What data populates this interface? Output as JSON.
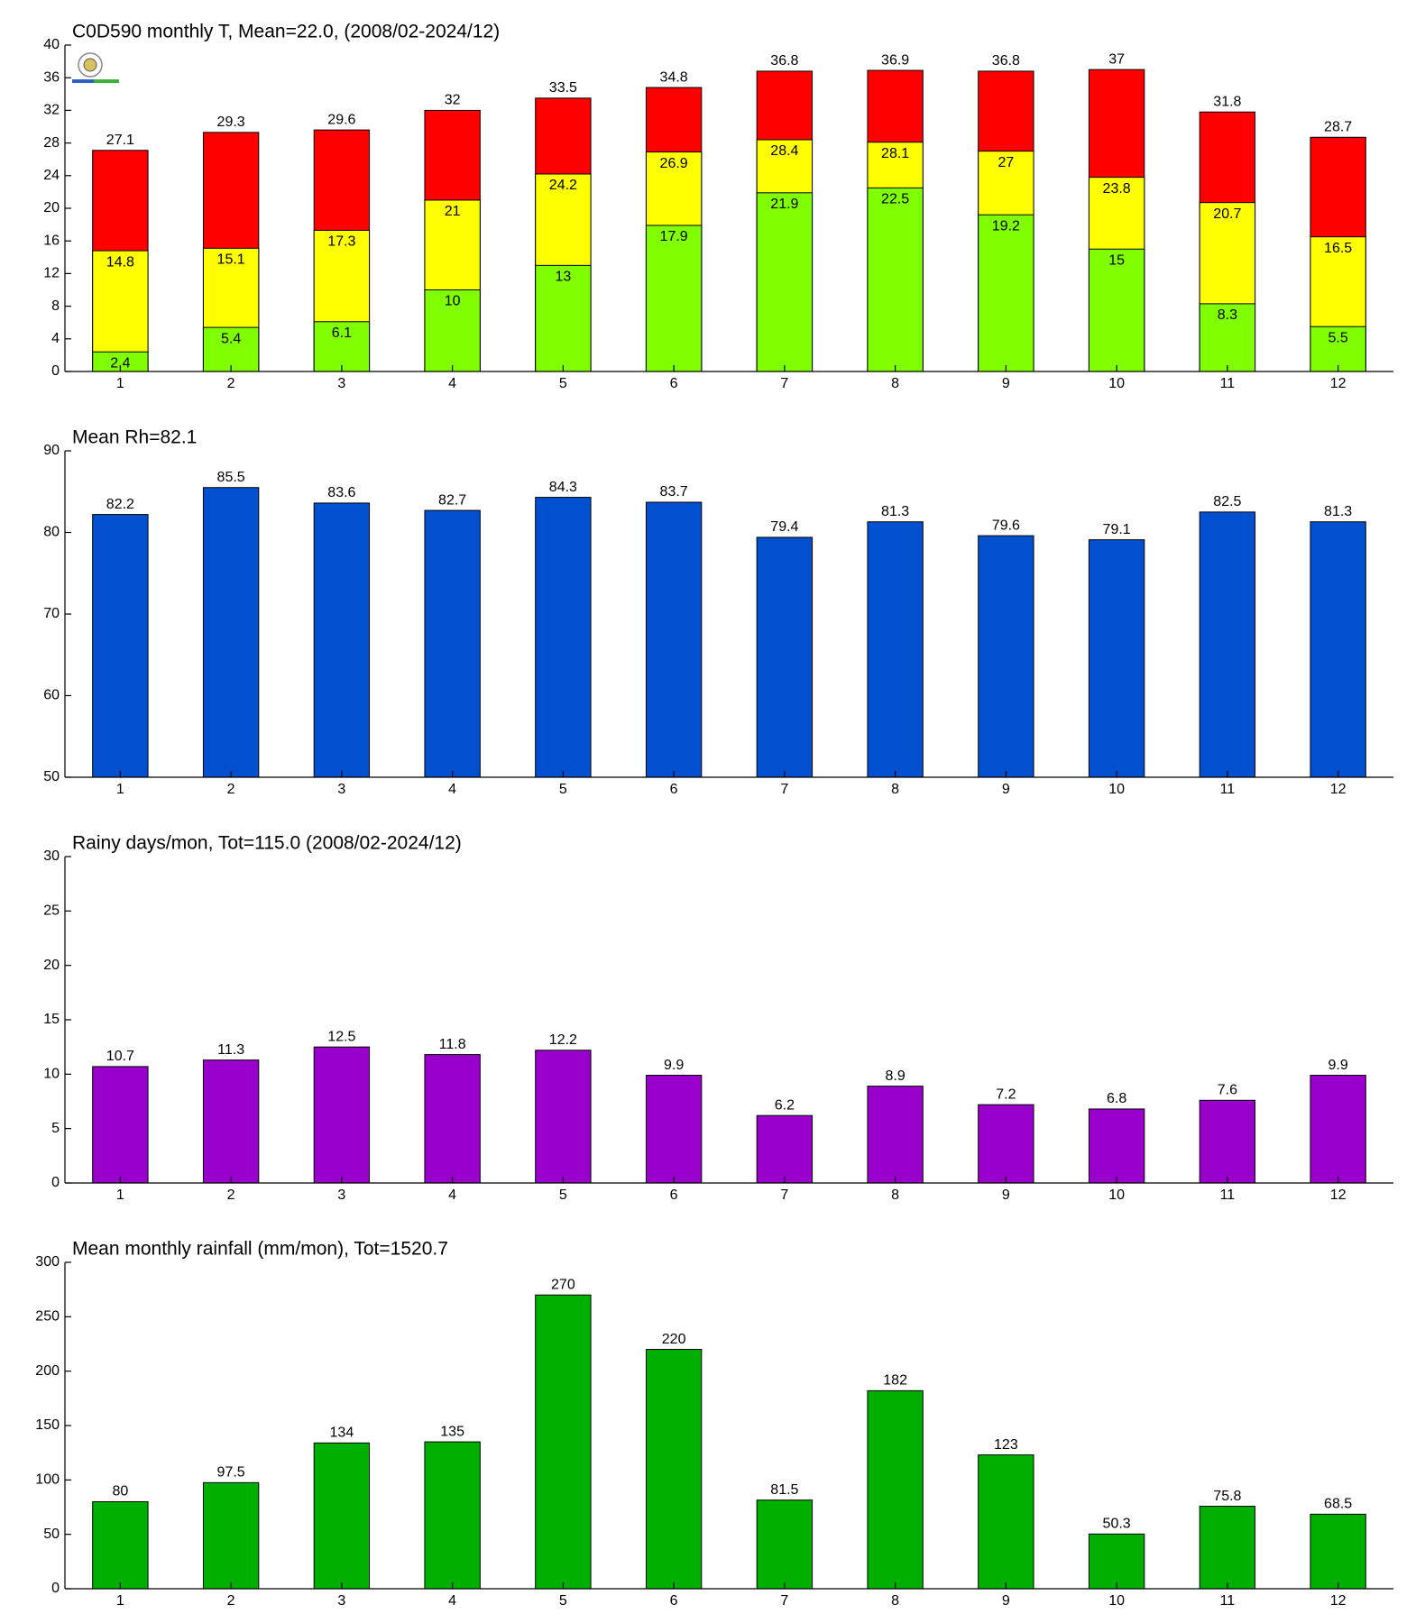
{
  "chart_data": [
    {
      "type": "bar",
      "title": "C0D590 monthly T, Mean=22.0, (2008/02-2024/12)",
      "categories": [
        "1",
        "2",
        "3",
        "4",
        "5",
        "6",
        "7",
        "8",
        "9",
        "10",
        "11",
        "12"
      ],
      "series": [
        {
          "color": "#ff0000",
          "values": [
            27.1,
            29.3,
            29.6,
            32,
            33.5,
            34.8,
            36.8,
            36.9,
            36.8,
            37,
            31.8,
            28.7
          ]
        },
        {
          "color": "#ffff00",
          "values": [
            14.8,
            15.1,
            17.3,
            21,
            24.2,
            26.9,
            28.4,
            28.1,
            27,
            23.8,
            20.7,
            16.5
          ]
        },
        {
          "color": "#80ff00",
          "values": [
            2.4,
            5.4,
            6.1,
            10,
            13,
            17.9,
            21.9,
            22.5,
            19.2,
            15,
            8.3,
            5.5
          ]
        }
      ],
      "ylim": [
        0,
        40
      ],
      "yticks": [
        0,
        4,
        8,
        12,
        16,
        20,
        24,
        28,
        32,
        36,
        40
      ]
    },
    {
      "type": "bar",
      "title": "Mean Rh=82.1",
      "categories": [
        "1",
        "2",
        "3",
        "4",
        "5",
        "6",
        "7",
        "8",
        "9",
        "10",
        "11",
        "12"
      ],
      "series": [
        {
          "color": "#0050d0",
          "values": [
            82.2,
            85.5,
            83.6,
            82.7,
            84.3,
            83.7,
            79.4,
            81.3,
            79.6,
            79.1,
            82.5,
            81.3
          ]
        }
      ],
      "ylim": [
        50,
        90
      ],
      "yticks": [
        50,
        60,
        70,
        80,
        90
      ]
    },
    {
      "type": "bar",
      "title": "Rainy days/mon, Tot=115.0 (2008/02-2024/12)",
      "categories": [
        "1",
        "2",
        "3",
        "4",
        "5",
        "6",
        "7",
        "8",
        "9",
        "10",
        "11",
        "12"
      ],
      "series": [
        {
          "color": "#9900cc",
          "values": [
            10.7,
            11.3,
            12.5,
            11.8,
            12.2,
            9.9,
            6.2,
            8.9,
            7.2,
            6.8,
            7.6,
            9.9
          ]
        }
      ],
      "ylim": [
        0,
        30
      ],
      "yticks": [
        0,
        5,
        10,
        15,
        20,
        25,
        30
      ]
    },
    {
      "type": "bar",
      "title": "Mean monthly rainfall (mm/mon), Tot=1520.7",
      "categories": [
        "1",
        "2",
        "3",
        "4",
        "5",
        "6",
        "7",
        "8",
        "9",
        "10",
        "11",
        "12"
      ],
      "series": [
        {
          "color": "#00b000",
          "values": [
            80,
            97.5,
            134,
            135,
            270,
            220,
            81.5,
            182,
            123,
            50.3,
            75.8,
            68.5
          ]
        }
      ],
      "ylim": [
        0,
        300
      ],
      "yticks": [
        0,
        50,
        100,
        150,
        200,
        250,
        300
      ]
    }
  ]
}
